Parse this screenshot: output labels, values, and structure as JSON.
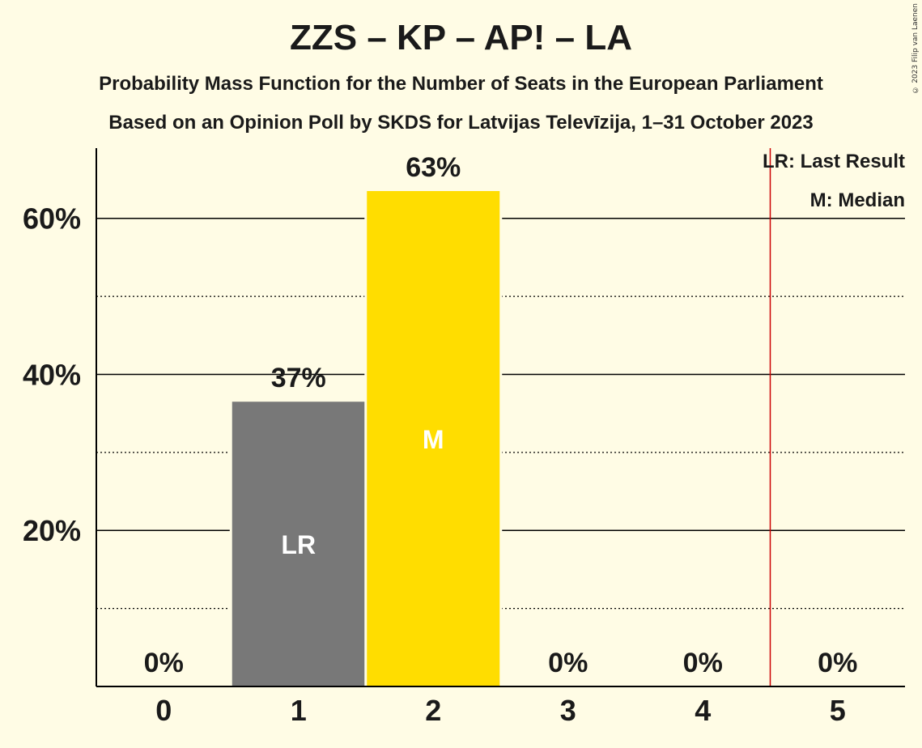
{
  "header": {
    "title": "ZZS – KP – AP! – LA",
    "subtitle": "Probability Mass Function for the Number of Seats in the European Parliament",
    "source": "Based on an Opinion Poll by SKDS for Latvijas Televīzija, 1–31 October 2023"
  },
  "copyright": "© 2023 Filip van Laenen",
  "legend": {
    "last_result": "LR: Last Result",
    "median": "M: Median"
  },
  "chart_data": {
    "type": "bar",
    "categories": [
      "0",
      "1",
      "2",
      "3",
      "4",
      "5"
    ],
    "values": [
      0,
      36.5,
      63.5,
      0,
      0,
      0
    ],
    "value_labels": [
      "0%",
      "37%",
      "63%",
      "0%",
      "0%",
      "0%"
    ],
    "bar_marks": [
      "",
      "LR",
      "M",
      "",
      "",
      ""
    ],
    "bar_colors": [
      "#787878",
      "#787878",
      "#ffdd00",
      "#787878",
      "#787878",
      "#787878"
    ],
    "ylim": [
      0,
      69
    ],
    "major_ticks": [
      20,
      40,
      60
    ],
    "major_tick_labels": [
      "20%",
      "40%",
      "60%"
    ],
    "minor_gridlines": [
      10,
      30,
      50
    ],
    "last_result_line_at": 4.5,
    "last_result_line_color": "#cc0000",
    "grid": true,
    "legend_position": "top-right"
  }
}
